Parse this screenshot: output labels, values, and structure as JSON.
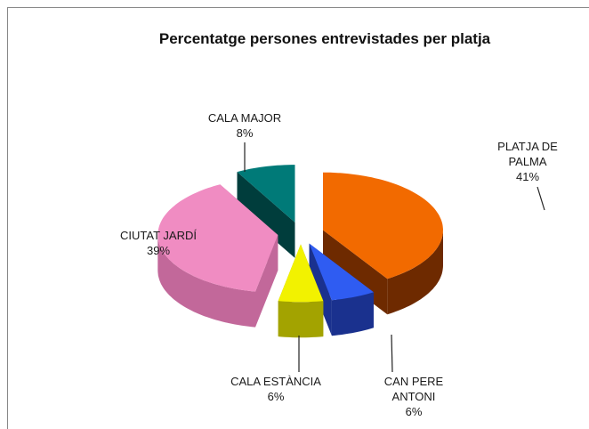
{
  "chart_data": {
    "type": "pie",
    "title": "Percentatge persones entrevistades per platja",
    "categories": [
      "PLATJA DE PALMA",
      "CAN PERE ANTONI",
      "CALA ESTÀNCIA",
      "CIUTAT JARDÍ",
      "CALA MAJOR"
    ],
    "values": [
      41,
      6,
      6,
      39,
      8
    ],
    "value_labels": [
      "41%",
      "6%",
      "6%",
      "39%",
      "8%"
    ],
    "colors": [
      "#f26a00",
      "#2f5cf2",
      "#f2f200",
      "#f08cc2",
      "#007a78"
    ],
    "side_colors": [
      "#6e2a00",
      "#1a318e",
      "#a3a300",
      "#c2689a",
      "#003d3c"
    ]
  }
}
